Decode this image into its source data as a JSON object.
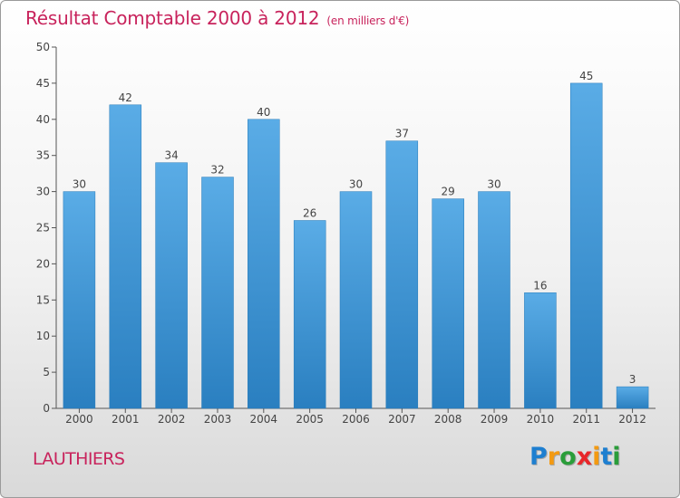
{
  "chart_data": {
    "type": "bar",
    "title": "Résultat Comptable 2000 à 2012",
    "subtitle": "(en milliers d'€)",
    "categories": [
      "2000",
      "2001",
      "2002",
      "2003",
      "2004",
      "2005",
      "2006",
      "2007",
      "2008",
      "2009",
      "2010",
      "2011",
      "2012"
    ],
    "values": [
      30,
      42,
      34,
      32,
      40,
      26,
      30,
      37,
      29,
      30,
      16,
      45,
      3
    ],
    "ylim": [
      0,
      50
    ],
    "yticks": [
      0,
      5,
      10,
      15,
      20,
      25,
      30,
      35,
      40,
      45,
      50
    ],
    "xlabel": "",
    "ylabel": "",
    "grid": false,
    "bar_color": "#2e86c8",
    "bar_color_light": "#5aace6"
  },
  "location": "LAUTHIERS",
  "logo": {
    "letters": [
      "P",
      "r",
      "o",
      "x",
      "i",
      "t",
      "i"
    ],
    "colors": [
      "#1e7fd0",
      "#f39a12",
      "#2a9d3a",
      "#e8262a",
      "#f39a12",
      "#1e7fd0",
      "#2a9d3a"
    ]
  },
  "colors": {
    "title": "#c8235c",
    "axis": "#555555"
  }
}
